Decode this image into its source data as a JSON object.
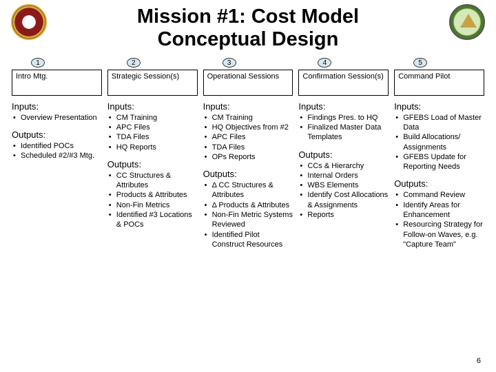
{
  "title_line1": "Mission #1: Cost Model",
  "title_line2": "Conceptual Design",
  "slide_number": "6",
  "columns": [
    {
      "num": "1",
      "phase": "Intro Mtg.",
      "inputs_label": "Inputs:",
      "inputs": [
        "Overview Presentation"
      ],
      "outputs_label": "Outputs:",
      "outputs": [
        "Identified POCs",
        "Scheduled #2/#3 Mtg."
      ]
    },
    {
      "num": "2",
      "phase": "Strategic Session(s)",
      "inputs_label": "Inputs:",
      "inputs": [
        "CM Training",
        "APC Files",
        "TDA Files",
        "HQ Reports"
      ],
      "outputs_label": "Outputs:",
      "outputs": [
        "CC Structures & Attributes",
        "Products & Attributes",
        "Non-Fin Metrics",
        "Identified #3 Locations & POCs"
      ]
    },
    {
      "num": "3",
      "phase": "Operational Sessions",
      "inputs_label": "Inputs:",
      "inputs": [
        "CM Training",
        "HQ Objectives from #2",
        "APC Files",
        "TDA Files",
        "OPs Reports"
      ],
      "outputs_label": "Outputs:",
      "outputs": [
        "Δ CC Structures & Attributes",
        "Δ Products & Attributes",
        "Non-Fin Metric Systems Reviewed",
        "Identified Pilot Construct Resources"
      ]
    },
    {
      "num": "4",
      "phase": "Confirmation Session(s)",
      "inputs_label": "Inputs:",
      "inputs": [
        "Findings Pres. to HQ",
        "Finalized Master Data Templates"
      ],
      "outputs_label": "Outputs:",
      "outputs": [
        "CCs & Hierarchy",
        "Internal Orders",
        "WBS Elements",
        "Identify Cost Allocations & Assignments",
        "Reports"
      ]
    },
    {
      "num": "5",
      "phase": "Command Pilot",
      "inputs_label": "Inputs:",
      "inputs": [
        "GFEBS Load of Master Data",
        "Build Allocations/ Assignments",
        "GFEBS Update for Reporting Needs"
      ],
      "outputs_label": "Outputs:",
      "outputs": [
        "Command Review",
        "Identify Areas for Enhancement",
        "Resourcing Strategy for Follow-on Waves, e.g. \"Capture Team\""
      ]
    }
  ]
}
